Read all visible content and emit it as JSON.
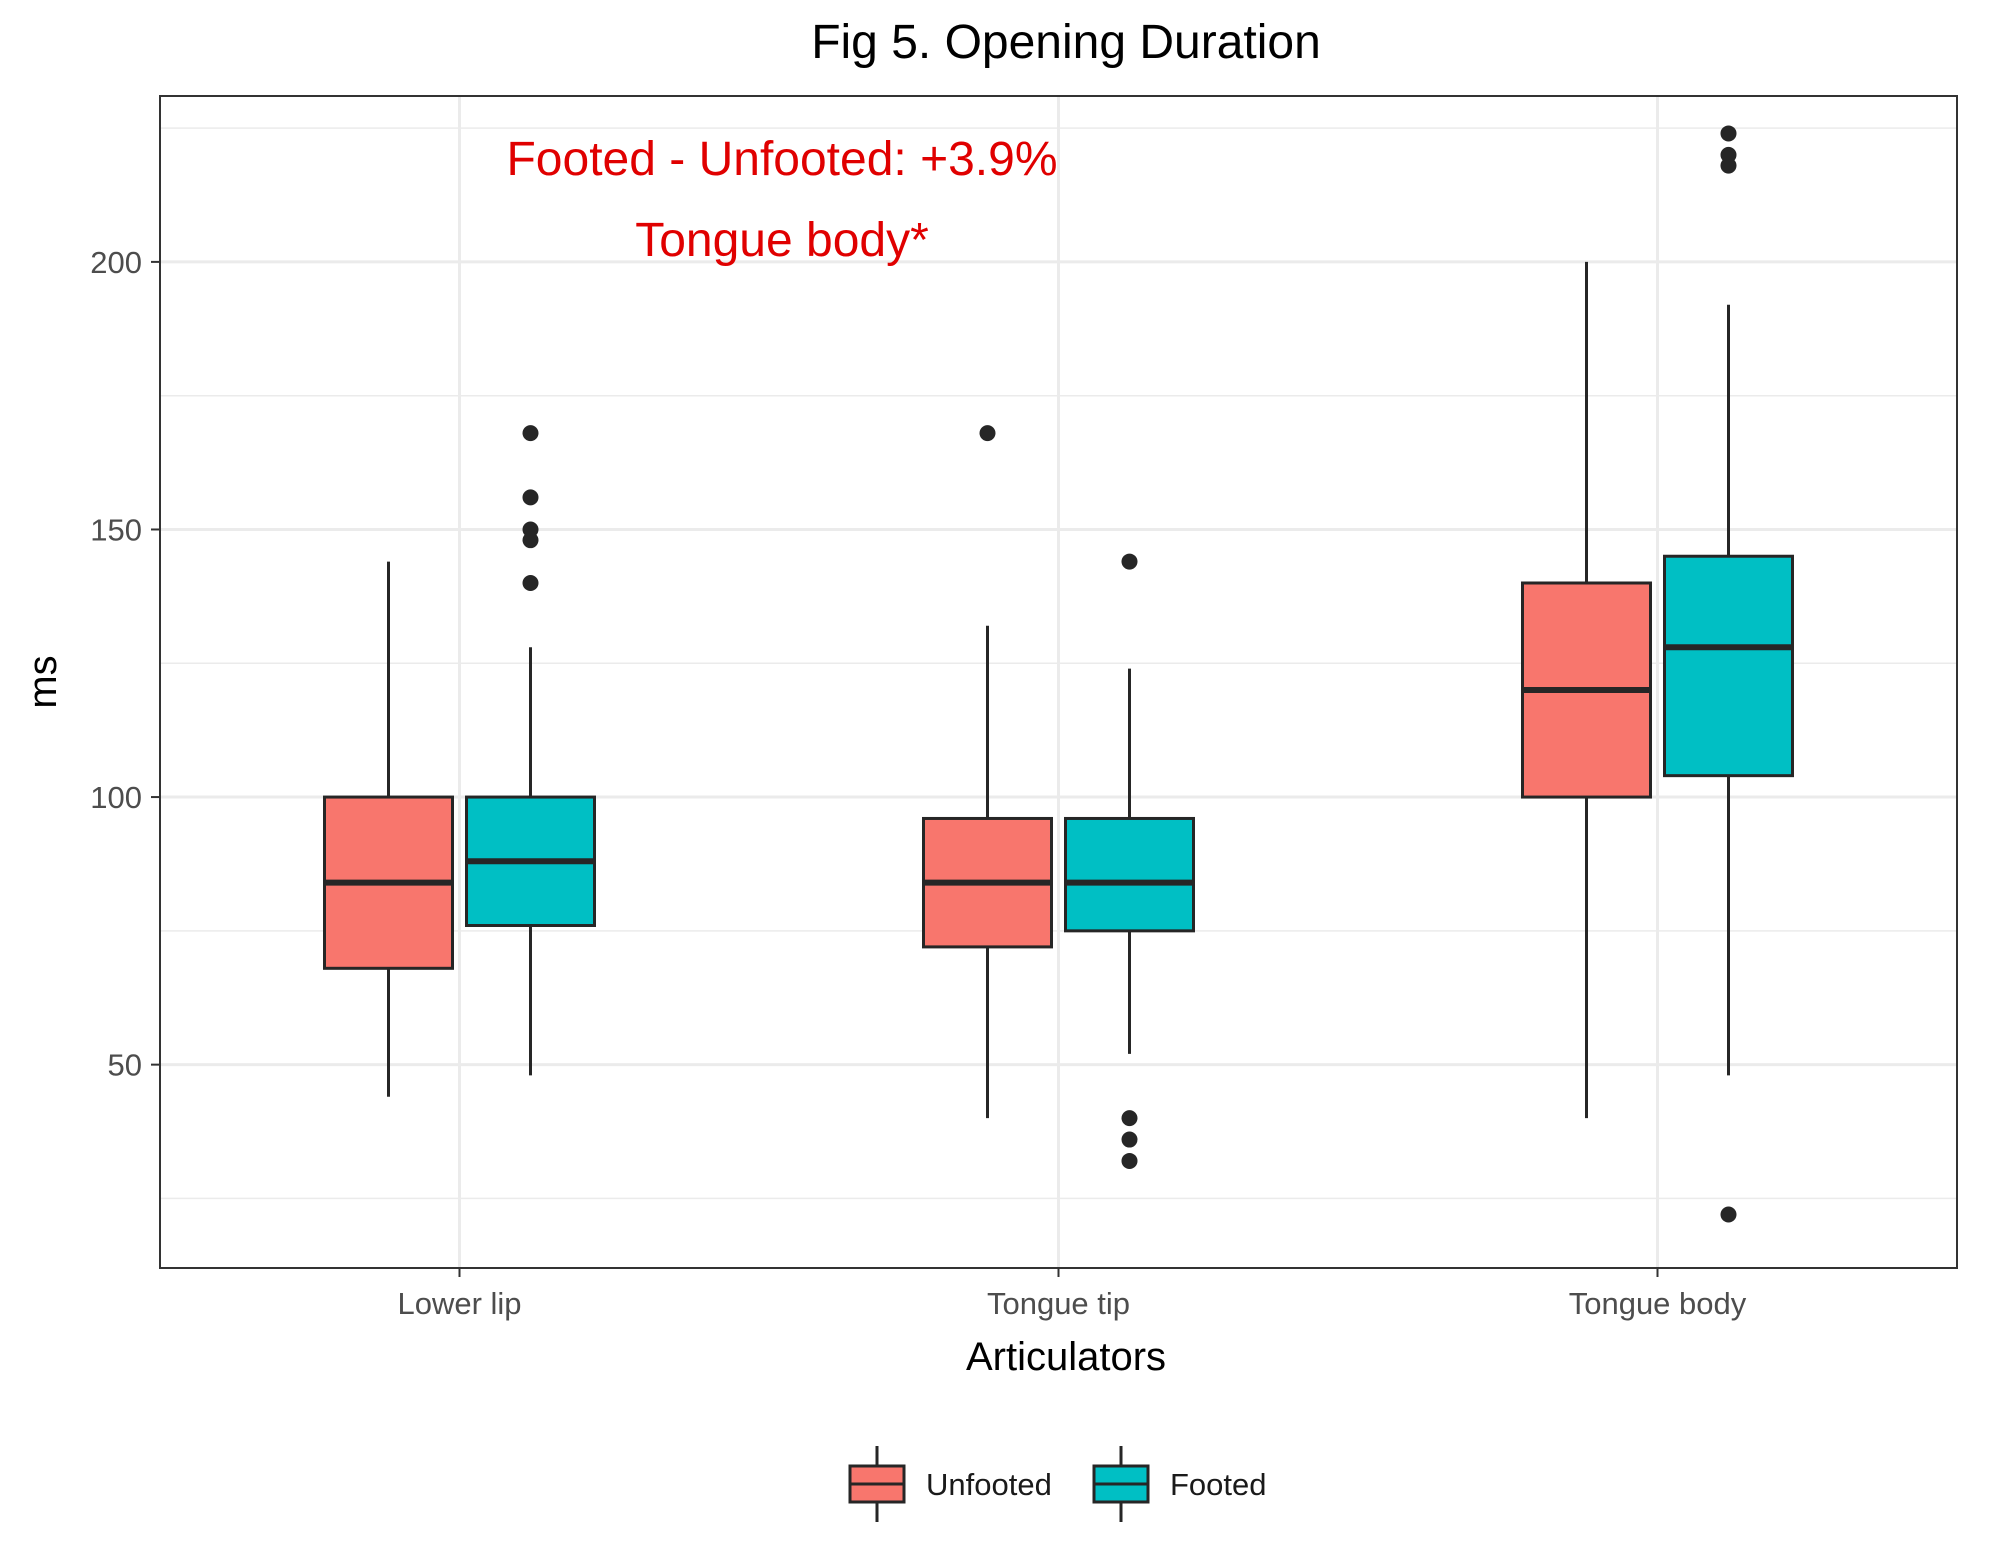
{
  "chart_data": {
    "type": "boxplot",
    "title": "Fig 5. Opening Duration",
    "xlabel": "Articulators",
    "ylabel": "ms",
    "categories": [
      "Lower lip",
      "Tongue tip",
      "Tongue body"
    ],
    "ylim": [
      12,
      231
    ],
    "yticks": [
      50,
      100,
      150,
      200
    ],
    "grid": true,
    "legend_position": "bottom",
    "annotations": [
      "Footed - Unfooted: +3.9%",
      "Tongue body*"
    ],
    "colors": {
      "annotation": "#e00000",
      "grid": "#ebebeb",
      "box_outline": "#262626"
    },
    "series": [
      {
        "name": "Unfooted",
        "color": "#f8766d",
        "boxes": [
          {
            "category": "Lower lip",
            "whisker_low": 44,
            "q1": 68,
            "median": 84,
            "q3": 100,
            "whisker_high": 144,
            "outliers": []
          },
          {
            "category": "Tongue tip",
            "whisker_low": 40,
            "q1": 72,
            "median": 84,
            "q3": 96,
            "whisker_high": 132,
            "outliers": [
              168
            ]
          },
          {
            "category": "Tongue body",
            "whisker_low": 40,
            "q1": 100,
            "median": 120,
            "q3": 140,
            "whisker_high": 200,
            "outliers": []
          }
        ]
      },
      {
        "name": "Footed",
        "color": "#00bfc4",
        "boxes": [
          {
            "category": "Lower lip",
            "whisker_low": 48,
            "q1": 76,
            "median": 88,
            "q3": 100,
            "whisker_high": 128,
            "outliers": [
              140,
              148,
              150,
              156,
              168
            ]
          },
          {
            "category": "Tongue tip",
            "whisker_low": 52,
            "q1": 75,
            "median": 84,
            "q3": 96,
            "whisker_high": 124,
            "outliers": [
              32,
              36,
              40,
              144
            ]
          },
          {
            "category": "Tongue body",
            "whisker_low": 48,
            "q1": 104,
            "median": 128,
            "q3": 145,
            "whisker_high": 192,
            "outliers": [
              22,
              218,
              220,
              224
            ]
          }
        ]
      }
    ]
  }
}
